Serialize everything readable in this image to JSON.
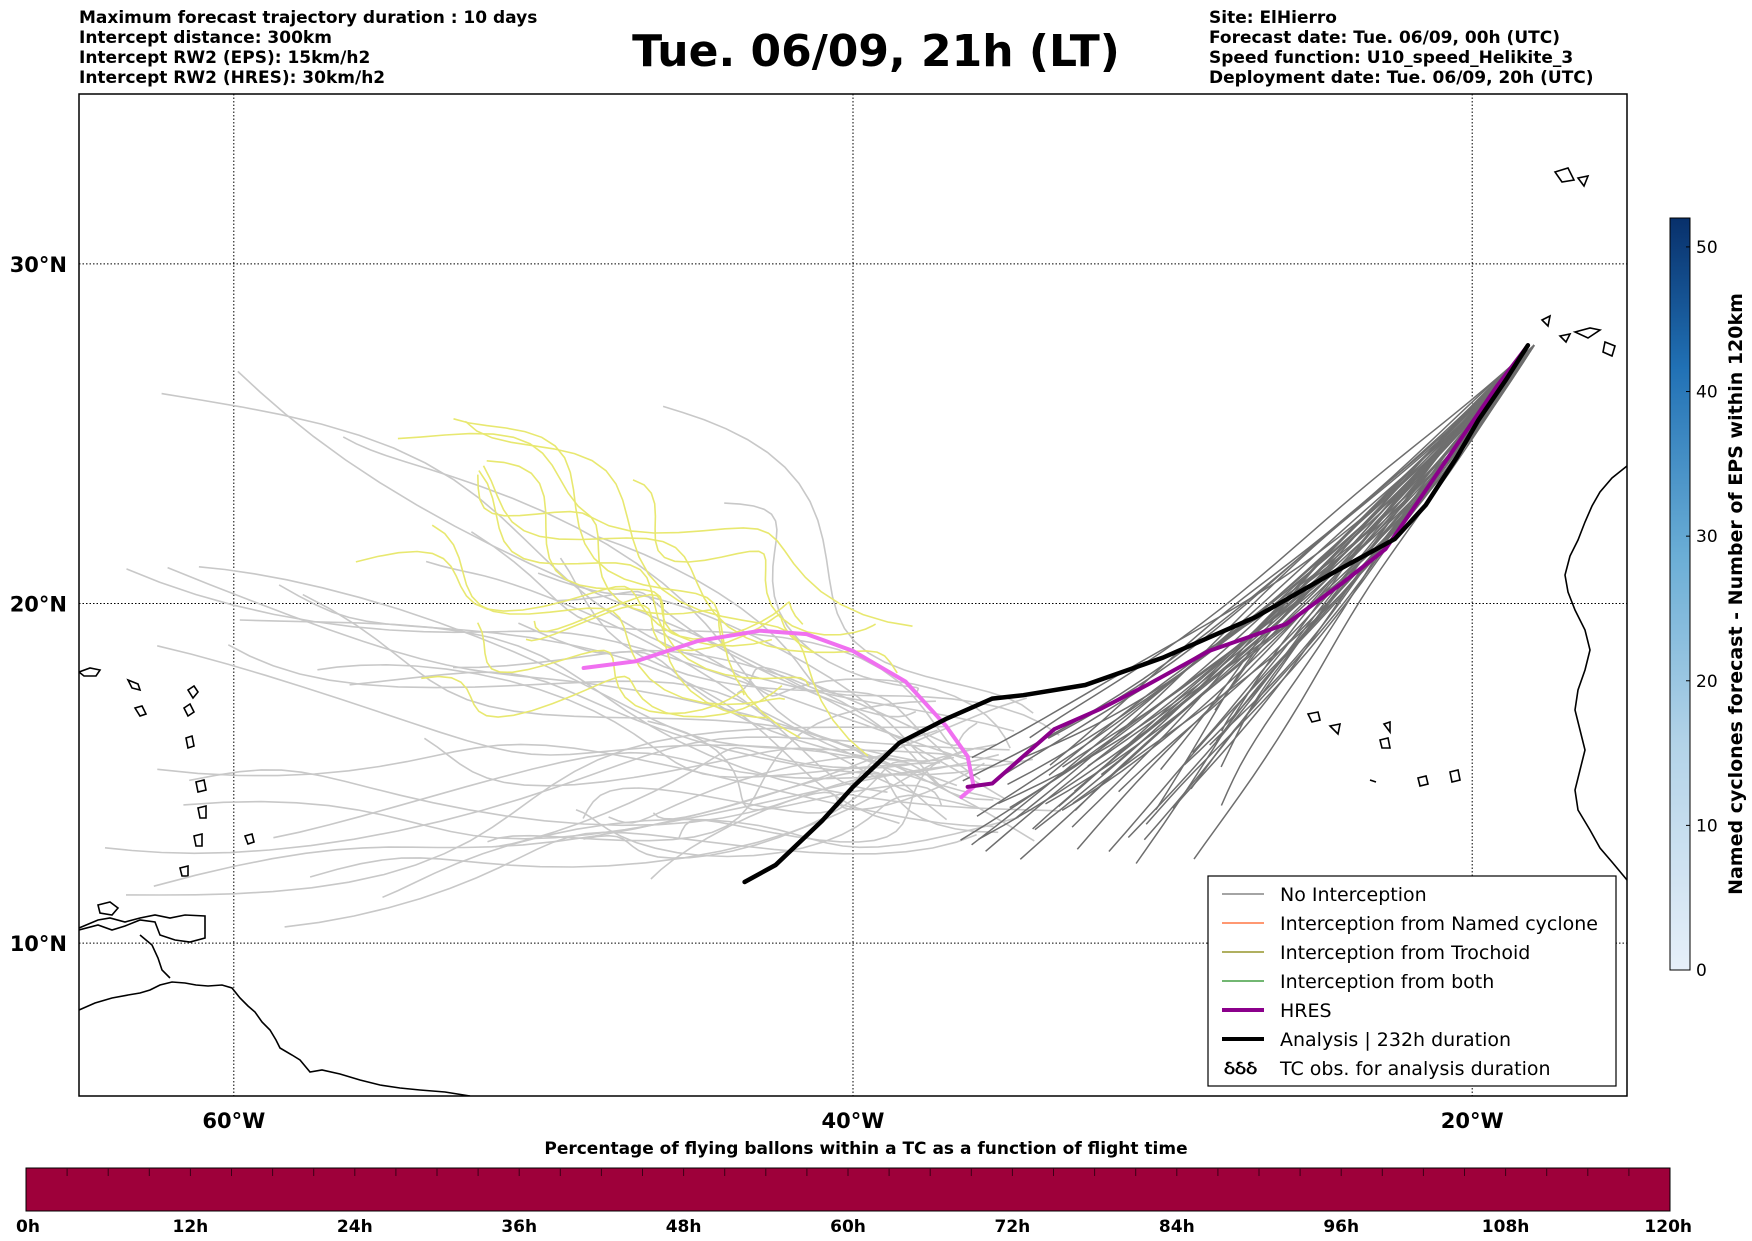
{
  "header": {
    "left_lines": [
      "Maximum forecast trajectory duration : 10 days",
      "Intercept distance: 300km",
      "Intercept RW2 (EPS):  15km/h2",
      "Intercept RW2 (HRES): 30km/h2"
    ],
    "title": "Tue. 06/09, 21h (LT)",
    "right_lines": [
      "Site: ElHierro",
      "Forecast date: Tue. 06/09, 00h (UTC)",
      "Speed function: U10_speed_Helikite_3",
      "Deployment date: Tue. 06/09, 20h (UTC)"
    ]
  },
  "map": {
    "lon_range": [
      -65,
      -15
    ],
    "lat_range": [
      5.5,
      35
    ],
    "lon_ticks": [
      -60,
      -40,
      -20
    ],
    "lon_labels": [
      "60°W",
      "40°W",
      "20°W"
    ],
    "lat_ticks": [
      10,
      20,
      30
    ],
    "lat_labels": [
      "10°N",
      "20°N",
      "30°N"
    ],
    "grid": "dotted",
    "colors": {
      "no_interception": "#6e6e6e",
      "named_cyclone": "#ff5a1f",
      "trochoid": "#808000",
      "both": "#1e8c1e",
      "hres": "#8b008b",
      "analysis": "#000000",
      "faint_track": "#c8c8c8",
      "yellow_track": "#e8e870",
      "pink_track": "#f070f0"
    },
    "site": {
      "name": "ElHierro",
      "lon": -18,
      "lat": 27.7
    },
    "analysis_track": [
      [
        -18.2,
        27.6
      ],
      [
        -18.9,
        26.6
      ],
      [
        -19.8,
        25.4
      ],
      [
        -20.5,
        24.3
      ],
      [
        -21.5,
        22.9
      ],
      [
        -22.5,
        21.9
      ],
      [
        -24.5,
        20.9
      ],
      [
        -27,
        19.6
      ],
      [
        -30,
        18.4
      ],
      [
        -32.5,
        17.6
      ],
      [
        -34.5,
        17.3
      ],
      [
        -35.5,
        17.2
      ],
      [
        -37,
        16.6
      ],
      [
        -38.5,
        15.9
      ],
      [
        -40,
        14.6
      ],
      [
        -41,
        13.6
      ],
      [
        -42.5,
        12.3
      ],
      [
        -43.5,
        11.8
      ]
    ],
    "hres_track": [
      [
        -18.2,
        27.6
      ],
      [
        -19.2,
        26.4
      ],
      [
        -20.4,
        24.8
      ],
      [
        -21.6,
        23.2
      ],
      [
        -22.8,
        21.6
      ],
      [
        -24.2,
        20.6
      ],
      [
        -26,
        19.4
      ],
      [
        -28.5,
        18.6
      ],
      [
        -30.5,
        17.6
      ],
      [
        -32,
        16.9
      ],
      [
        -33.5,
        16.3
      ],
      [
        -34.5,
        15.5
      ],
      [
        -35.5,
        14.7
      ],
      [
        -36.3,
        14.6
      ]
    ],
    "pink_track": [
      [
        -36.5,
        14.3
      ],
      [
        -36.1,
        14.6
      ],
      [
        -36.3,
        15.5
      ],
      [
        -37,
        16.4
      ],
      [
        -38.3,
        17.7
      ],
      [
        -40,
        18.6
      ],
      [
        -41.5,
        19.1
      ],
      [
        -43,
        19.2
      ],
      [
        -45,
        18.9
      ],
      [
        -47,
        18.3
      ],
      [
        -48.7,
        18.1
      ]
    ]
  },
  "legend": [
    {
      "label": "No Interception",
      "style": "thin",
      "color": "#6e6e6e"
    },
    {
      "label": "Interception from Named cyclone",
      "style": "thin",
      "color": "#ff5a1f"
    },
    {
      "label": "Interception from Trochoid",
      "style": "thin",
      "color": "#808000"
    },
    {
      "label": "Interception from both",
      "style": "thin",
      "color": "#1e8c1e"
    },
    {
      "label": "HRES",
      "style": "thick",
      "color": "#8b008b"
    },
    {
      "label": "Analysis | 232h duration",
      "style": "thick",
      "color": "#000000"
    },
    {
      "label": "TC obs. for analysis duration",
      "style": "symbol",
      "symbol": "ઠઠઠ",
      "color": "#000000"
    }
  ],
  "colorbar": {
    "title": "Named cyclones forecast - Number of EPS within 120km",
    "ticks": [
      "0",
      "10",
      "20",
      "30",
      "40",
      "50"
    ],
    "tick_values": [
      0,
      10,
      20,
      30,
      40,
      50
    ],
    "range": [
      0,
      52
    ],
    "color_low": "#e6eff9",
    "color_high": "#08306b"
  },
  "flight_bar": {
    "title": "Percentage of flying ballons within a TC as a function of flight time",
    "ticks": [
      "0h",
      "12h",
      "24h",
      "36h",
      "48h",
      "60h",
      "72h",
      "84h",
      "96h",
      "108h",
      "120h"
    ],
    "fill_color": "#9e003a"
  }
}
